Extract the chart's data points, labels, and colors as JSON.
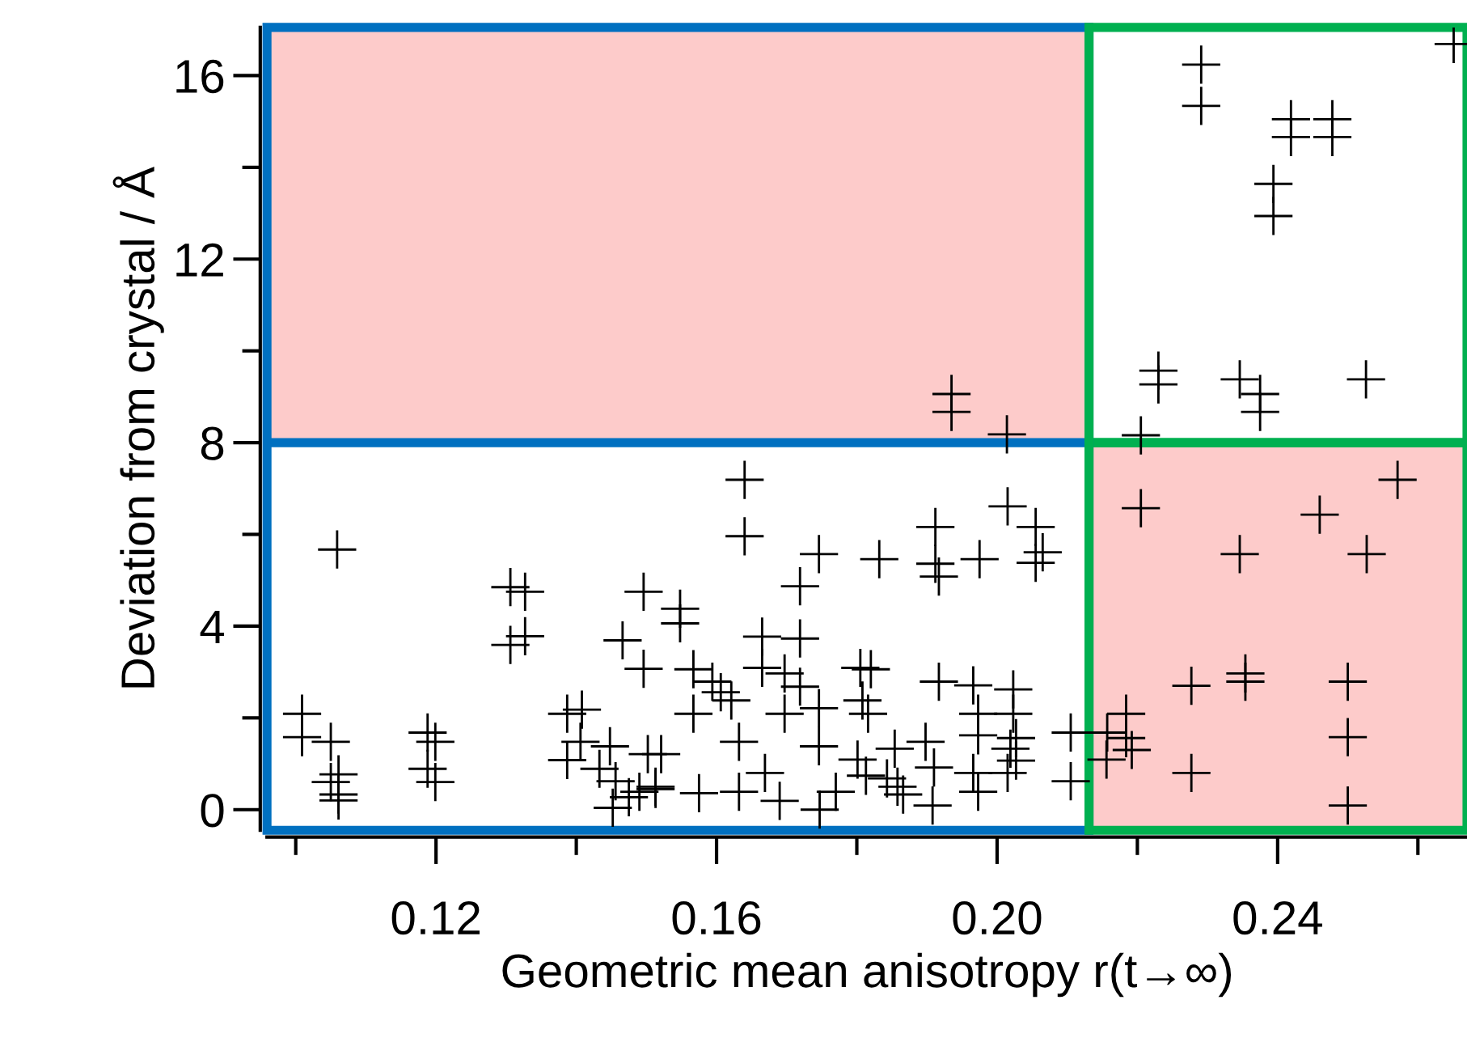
{
  "chart_data": {
    "type": "scatter",
    "xlabel": "Geometric mean anisotropy r(t→∞)",
    "ylabel": "Deviation from crystal / Å",
    "xlim": [
      0.0959,
      0.267
    ],
    "ylim": [
      -0.45,
      17.05
    ],
    "xticks": [
      {
        "value": 0.1,
        "label": null
      },
      {
        "value": 0.12,
        "label": "0.12"
      },
      {
        "value": 0.14,
        "label": null
      },
      {
        "value": 0.16,
        "label": "0.16"
      },
      {
        "value": 0.18,
        "label": null
      },
      {
        "value": 0.2,
        "label": "0.20"
      },
      {
        "value": 0.22,
        "label": null
      },
      {
        "value": 0.24,
        "label": "0.24"
      },
      {
        "value": 0.26,
        "label": null
      }
    ],
    "yticks": [
      0,
      {
        "value": 2,
        "label": null
      },
      4,
      {
        "value": 6,
        "label": null
      },
      8,
      {
        "value": 10,
        "label": null
      },
      12,
      {
        "value": 14,
        "label": null
      },
      16
    ],
    "grid": false,
    "legend": false,
    "marker": "cross",
    "ref_lines": [
      {
        "axis": "x",
        "value": 0.2131,
        "color": "#00b050"
      },
      {
        "axis": "y",
        "value": 8,
        "color": "#0070c0"
      }
    ],
    "series": [
      {
        "color": "#000000",
        "x": [
          0.1059,
          0.1009,
          0.1009,
          0.105,
          0.1061,
          0.105,
          0.1061,
          0.1061,
          0.1188,
          0.1199,
          0.1188,
          0.1199,
          0.1306,
          0.1327,
          0.1306,
          0.1327,
          0.1496,
          0.1466,
          0.1496,
          0.1387,
          0.1408,
          0.1387,
          0.1406,
          0.1448,
          0.1433,
          0.1456,
          0.149,
          0.1502,
          0.1452,
          0.1513,
          0.1475,
          0.164,
          0.164,
          0.1746,
          0.1832,
          0.1912,
          0.1912,
          0.1917,
          0.1975,
          0.2015,
          0.2055,
          0.2065,
          0.2055,
          0.1719,
          0.1548,
          0.1548,
          0.1665,
          0.1719,
          0.1665,
          0.1697,
          0.1719,
          0.1567,
          0.1594,
          0.1606,
          0.1621,
          0.1567,
          0.1697,
          0.1746,
          0.1805,
          0.182,
          0.1808,
          0.1816,
          0.1917,
          0.1966,
          0.2023,
          0.1973,
          0.1973,
          0.2023,
          0.2027,
          0.2019,
          0.2027,
          0.2015,
          0.1521,
          0.1632,
          0.1746,
          0.1854,
          0.1898,
          0.1801,
          0.1813,
          0.1843,
          0.1858,
          0.191,
          0.1973,
          0.1966,
          0.1669,
          0.169,
          0.1632,
          0.1575,
          0.1513,
          0.177,
          0.1747,
          0.1908,
          0.1866,
          0.2205,
          0.246,
          0.2571,
          0.2346,
          0.2527,
          0.2277,
          0.2354,
          0.2354,
          0.25,
          0.25,
          0.25,
          0.2277,
          0.2184,
          0.2157,
          0.2184,
          0.2192,
          0.2156,
          0.2105,
          0.2105,
          0.1935,
          0.1935,
          0.2014,
          0.2291,
          0.2291,
          0.2419,
          0.2419,
          0.2478,
          0.2478,
          0.2394,
          0.2394,
          0.2651,
          0.223,
          0.223,
          0.2346,
          0.2375,
          0.2375,
          0.2526,
          0.2205
        ],
        "values": [
          5.67,
          2.09,
          1.58,
          1.48,
          0.77,
          0.6,
          0.33,
          0.2,
          1.68,
          1.48,
          0.89,
          0.6,
          4.85,
          4.75,
          3.59,
          3.78,
          4.75,
          3.69,
          3.07,
          2.09,
          2.18,
          1.08,
          1.48,
          1.38,
          0.89,
          0.62,
          0.39,
          1.21,
          0.04,
          0.5,
          0.27,
          7.19,
          5.96,
          5.57,
          5.46,
          6.16,
          5.36,
          5.08,
          5.46,
          6.61,
          6.16,
          5.61,
          5.38,
          4.87,
          4.38,
          4.06,
          3.77,
          3.73,
          3.09,
          2.97,
          2.68,
          3.06,
          2.79,
          2.56,
          2.38,
          2.09,
          2.09,
          2.21,
          3.09,
          3.06,
          2.38,
          2.09,
          2.79,
          2.71,
          2.62,
          2.09,
          1.62,
          2.09,
          1.56,
          1.33,
          1.07,
          0.8,
          1.21,
          1.48,
          1.38,
          1.33,
          1.48,
          1.09,
          0.74,
          0.68,
          0.5,
          0.92,
          0.39,
          0.8,
          0.8,
          0.19,
          0.39,
          0.36,
          0.45,
          0.39,
          0.0,
          0.09,
          0.33,
          6.57,
          6.43,
          7.19,
          5.57,
          5.57,
          2.7,
          2.97,
          2.79,
          2.79,
          1.58,
          0.09,
          0.8,
          2.09,
          1.68,
          1.56,
          1.3,
          1.09,
          1.68,
          0.62,
          9.06,
          8.67,
          8.18,
          16.24,
          15.34,
          15.05,
          14.66,
          15.05,
          14.66,
          13.64,
          12.94,
          16.69,
          9.57,
          9.27,
          9.38,
          9.06,
          8.67,
          9.38,
          8.16
        ]
      }
    ]
  }
}
